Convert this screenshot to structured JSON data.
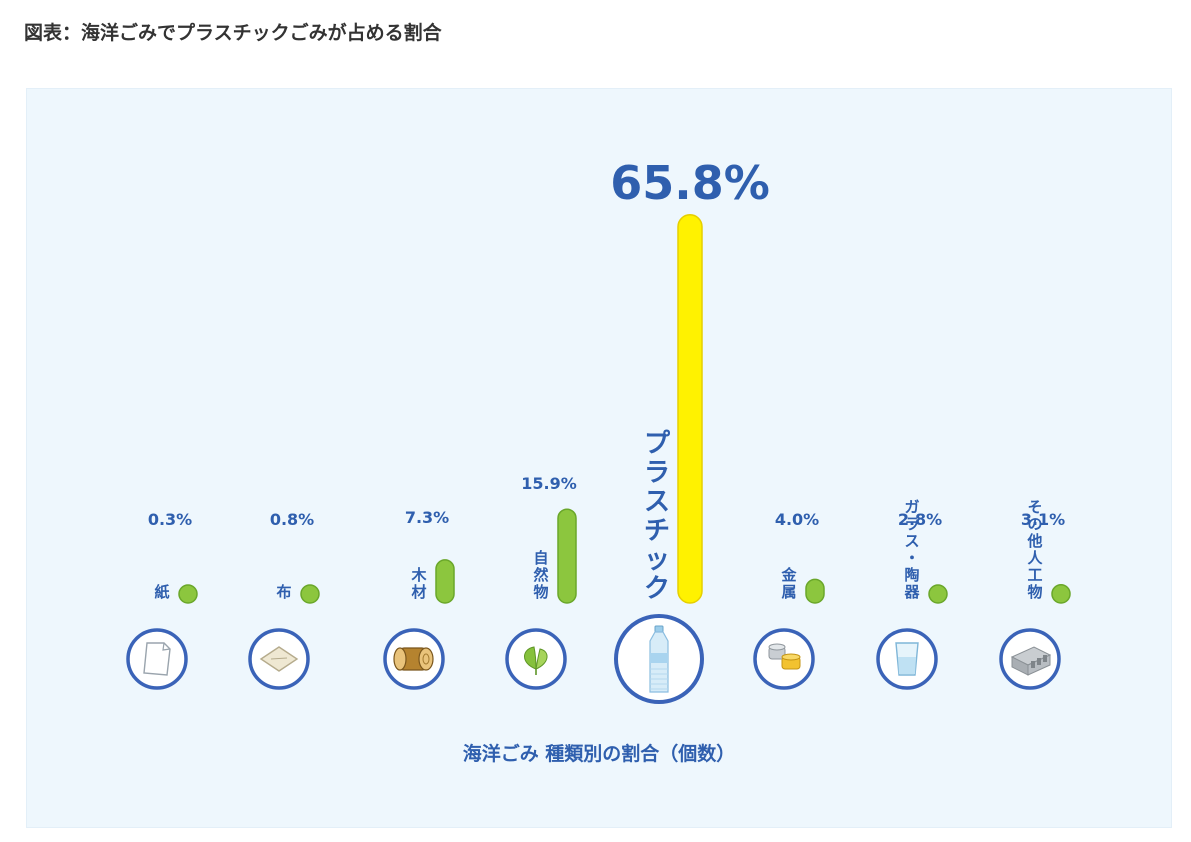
{
  "title": "図表：海洋ごみでプラスチックごみが占める割合",
  "caption": "海洋ごみ 種類別の割合（個数）",
  "colors": {
    "panel_bg": "#eef7fd",
    "value_text": "#2f5fae",
    "bar_default": "#8cc63e",
    "bar_default_stroke": "#6aa72a",
    "bar_highlight": "#fff200",
    "bar_highlight_stroke": "#e6cf00",
    "circle_stroke": "#3a63b8"
  },
  "chart_data": {
    "type": "bar",
    "title": "",
    "categories": [
      "紙",
      "布",
      "木材",
      "自然物",
      "プラスチック",
      "金属",
      "ガラス・陶器",
      "その他人工物"
    ],
    "values": [
      0.3,
      0.8,
      7.3,
      15.9,
      65.8,
      4.0,
      2.8,
      3.1
    ],
    "value_labels": [
      "0.3%",
      "0.8%",
      "7.3%",
      "15.9%",
      "65.8%",
      "4.0%",
      "2.8%",
      "3.1%"
    ],
    "icons": [
      "paper-icon",
      "cloth-icon",
      "wood-log-icon",
      "leaf-icon",
      "plastic-bottle-icon",
      "metal-cans-icon",
      "glass-cup-icon",
      "concrete-block-icon"
    ],
    "highlight_index": 4,
    "unit": "%",
    "grid": false,
    "legend": "none"
  }
}
